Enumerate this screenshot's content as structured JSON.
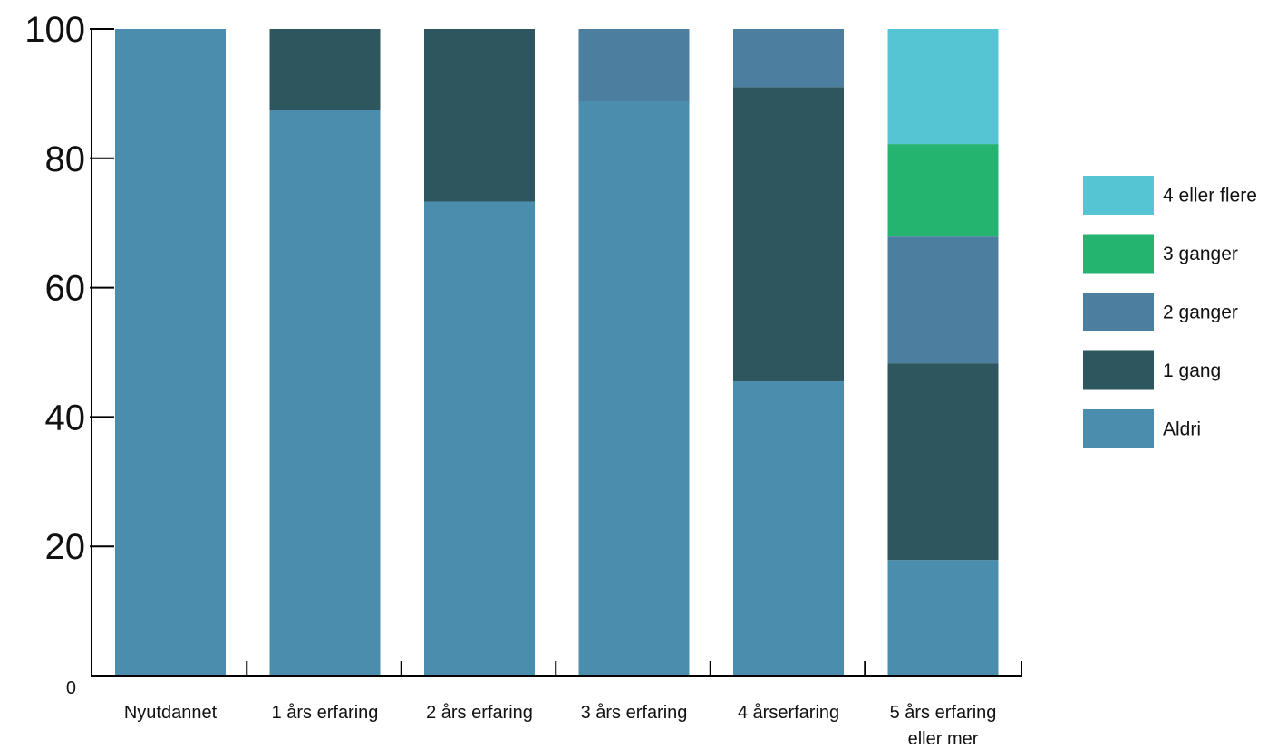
{
  "chart_data": {
    "type": "bar",
    "stacked": true,
    "title": "",
    "xlabel": "",
    "ylabel": "",
    "ylim": [
      0,
      100
    ],
    "yticks": [
      0,
      20,
      40,
      60,
      80,
      100
    ],
    "grid": false,
    "legend_position": "right",
    "categories": [
      [
        "Nyutdannet"
      ],
      [
        "1 års erfaring"
      ],
      [
        "2 års erfaring"
      ],
      [
        "3 års erfaring"
      ],
      [
        "4 årserfaring"
      ],
      [
        "5 års erfaring",
        "eller mer"
      ]
    ],
    "series": [
      {
        "name": "Aldri",
        "color": "#4A8DAC",
        "values": [
          100,
          87.5,
          73.3,
          88.9,
          45.5,
          17.9
        ]
      },
      {
        "name": "1 gang",
        "color": "#2D565E",
        "values": [
          0,
          12.5,
          26.7,
          0,
          45.5,
          30.4
        ]
      },
      {
        "name": "2 ganger",
        "color": "#4B7E9F",
        "values": [
          0,
          0,
          0,
          11.1,
          9.0,
          19.6
        ]
      },
      {
        "name": "3 ganger",
        "color": "#25B46F",
        "values": [
          0,
          0,
          0,
          0,
          0,
          14.3
        ]
      },
      {
        "name": "4 eller flere",
        "color": "#55C4D3",
        "values": [
          0,
          0,
          0,
          0,
          0,
          17.8
        ]
      }
    ],
    "legend_order": [
      "4 eller flere",
      "3 ganger",
      "2 ganger",
      "1 gang",
      "Aldri"
    ]
  }
}
